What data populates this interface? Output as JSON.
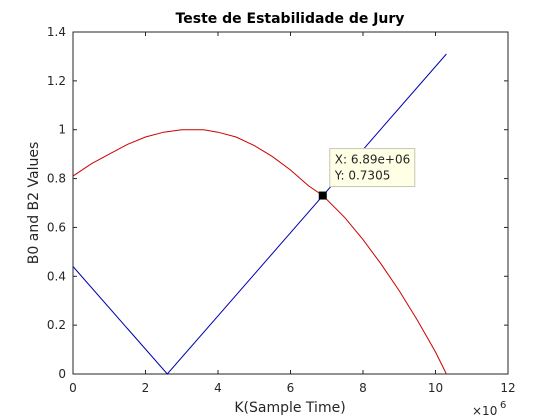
{
  "chart_data": {
    "type": "line",
    "title": "Teste de Estabilidade de Jury",
    "xlabel": "K(Sample Time)",
    "ylabel": "B0 and B2 Values",
    "x_multiplier_label": "×10",
    "x_multiplier_exponent": "6",
    "xlim": [
      0,
      12
    ],
    "ylim": [
      0,
      1.4
    ],
    "xticks": [
      "0",
      "2",
      "4",
      "6",
      "8",
      "10",
      "12"
    ],
    "yticks": [
      "0",
      "0.2",
      "0.4",
      "0.6",
      "0.8",
      "1",
      "1.2",
      "1.4"
    ],
    "grid": false,
    "colors": {
      "red_series": "#cc0000",
      "blue_series": "#0000b3"
    },
    "series": [
      {
        "color": "blue",
        "x": [
          0,
          2.6,
          10.3
        ],
        "y": [
          0.44,
          0.0,
          1.31
        ]
      },
      {
        "color": "red",
        "x": [
          0,
          0.5,
          1,
          1.5,
          2,
          2.5,
          3,
          3.3,
          3.6,
          4,
          4.5,
          5,
          5.5,
          6,
          6.5,
          6.89,
          7.5,
          8,
          8.5,
          9,
          9.5,
          10,
          10.3
        ],
        "y": [
          0.81,
          0.86,
          0.9,
          0.94,
          0.97,
          0.99,
          1.0,
          1.0,
          1.0,
          0.99,
          0.97,
          0.935,
          0.89,
          0.835,
          0.77,
          0.7305,
          0.64,
          0.55,
          0.45,
          0.34,
          0.22,
          0.09,
          0.0
        ]
      }
    ],
    "datatip": {
      "x": 6.89,
      "y": 0.7305,
      "line1": "X: 6.89e+06",
      "line2": "Y: 0.7305"
    }
  }
}
